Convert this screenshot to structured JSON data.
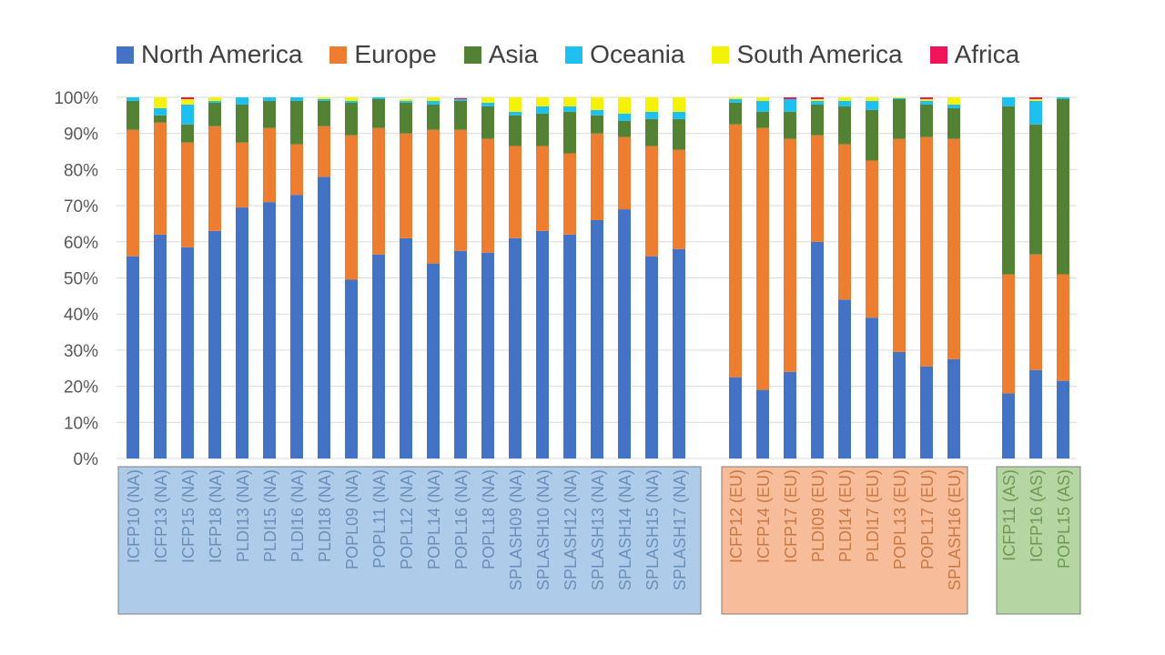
{
  "chart_data": {
    "type": "bar",
    "stacked": "percent",
    "title": "",
    "xlabel": "",
    "ylabel": "",
    "ylim": [
      0,
      100
    ],
    "yticks": [
      "0%",
      "10%",
      "20%",
      "30%",
      "40%",
      "50%",
      "60%",
      "70%",
      "80%",
      "90%",
      "100%"
    ],
    "grid": true,
    "legend_position": "top",
    "groups": [
      {
        "name": "NA",
        "color": "#aecbe9",
        "text_color": "#6b8fb8",
        "start": 0,
        "end": 20
      },
      {
        "name": "EU",
        "color": "#f7bc99",
        "text_color": "#c97a44",
        "start": 21,
        "end": 29
      },
      {
        "name": "AS",
        "color": "#b5d5a3",
        "text_color": "#6f9a55",
        "start": 30,
        "end": 33
      }
    ],
    "categories": [
      "ICFP10 (NA)",
      "ICFP13 (NA)",
      "ICFP15 (NA)",
      "ICFP18 (NA)",
      "PLDI13 (NA)",
      "PLDI15 (NA)",
      "PLDI16 (NA)",
      "PLDI18 (NA)",
      "POPL09 (NA)",
      "POPL11 (NA)",
      "POPL12 (NA)",
      "POPL14 (NA)",
      "POPL16 (NA)",
      "POPL18 (NA)",
      "SPLASH09 (NA)",
      "SPLASH10 (NA)",
      "SPLASH12 (NA)",
      "SPLASH13 (NA)",
      "SPLASH14 (NA)",
      "SPLASH15 (NA)",
      "SPLASH17 (NA)",
      "ICFP12 (EU)",
      "ICFP14 (EU)",
      "ICFP17 (EU)",
      "PLDI09 (EU)",
      "PLDI14 (EU)",
      "PLDI17 (EU)",
      "POPL13 (EU)",
      "POPL17 (EU)",
      "SPLASH16 (EU)",
      "ICFP11 (AS)",
      "ICFP16 (AS)",
      "POPL15 (AS)"
    ],
    "series": [
      {
        "name": "North America",
        "color": "#4472c4",
        "values": [
          56,
          62,
          58.5,
          63,
          69.5,
          71,
          73,
          78,
          49.5,
          56.5,
          61,
          54,
          57.5,
          57,
          61,
          63,
          62,
          66,
          69,
          56,
          58,
          22.5,
          19,
          24,
          60,
          44,
          39,
          29.5,
          25.5,
          27.5,
          18,
          24.5,
          21.5
        ]
      },
      {
        "name": "Europe",
        "color": "#ed7d31",
        "values": [
          35,
          31,
          29,
          29,
          18,
          20.5,
          14,
          14,
          40,
          35,
          29,
          37,
          33.5,
          31.5,
          25.5,
          23.5,
          22.5,
          24,
          20,
          30.5,
          27.5,
          70,
          72.5,
          64.5,
          29.5,
          43,
          43.5,
          59,
          63.5,
          61,
          33,
          32,
          29.5
        ]
      },
      {
        "name": "Asia",
        "color": "#548235",
        "values": [
          8,
          2,
          5,
          6.5,
          10.5,
          7.5,
          12,
          7,
          9,
          8,
          8.5,
          7,
          8,
          9,
          8.5,
          9,
          11.5,
          5,
          4.5,
          7.5,
          8.5,
          6,
          4.5,
          7.5,
          8.5,
          10.5,
          14,
          11,
          9,
          8.5,
          46.5,
          36,
          48.5
        ]
      },
      {
        "name": "Oceania",
        "color": "#1ec0f0",
        "values": [
          1,
          2,
          5.5,
          0.5,
          2,
          1,
          1,
          0.5,
          0.5,
          0.5,
          0.5,
          1,
          0.5,
          1,
          1,
          2,
          1.5,
          1.5,
          2,
          2,
          2,
          1,
          3,
          3.5,
          1,
          1.5,
          2.5,
          0.3,
          1,
          1,
          2.5,
          6.5,
          0.5
        ]
      },
      {
        "name": "South America",
        "color": "#f5f20a",
        "values": [
          0,
          3,
          1.5,
          1,
          0,
          0,
          0,
          0.5,
          1,
          0,
          0.5,
          1,
          0,
          1.5,
          4,
          2.5,
          2.5,
          3.5,
          4.5,
          4,
          4,
          0.5,
          1,
          0,
          0.5,
          1,
          1,
          0.2,
          0.5,
          2,
          0,
          0.5,
          0
        ]
      },
      {
        "name": "Africa",
        "color": "#f0145a",
        "values": [
          0,
          0,
          0.5,
          0,
          0,
          0,
          0,
          0,
          0,
          0,
          0,
          0,
          0.3,
          0,
          0,
          0,
          0,
          0,
          0,
          0,
          0,
          0,
          0,
          0.5,
          0.5,
          0,
          0,
          0,
          0.5,
          0,
          0,
          0.5,
          0.5
        ]
      }
    ]
  }
}
